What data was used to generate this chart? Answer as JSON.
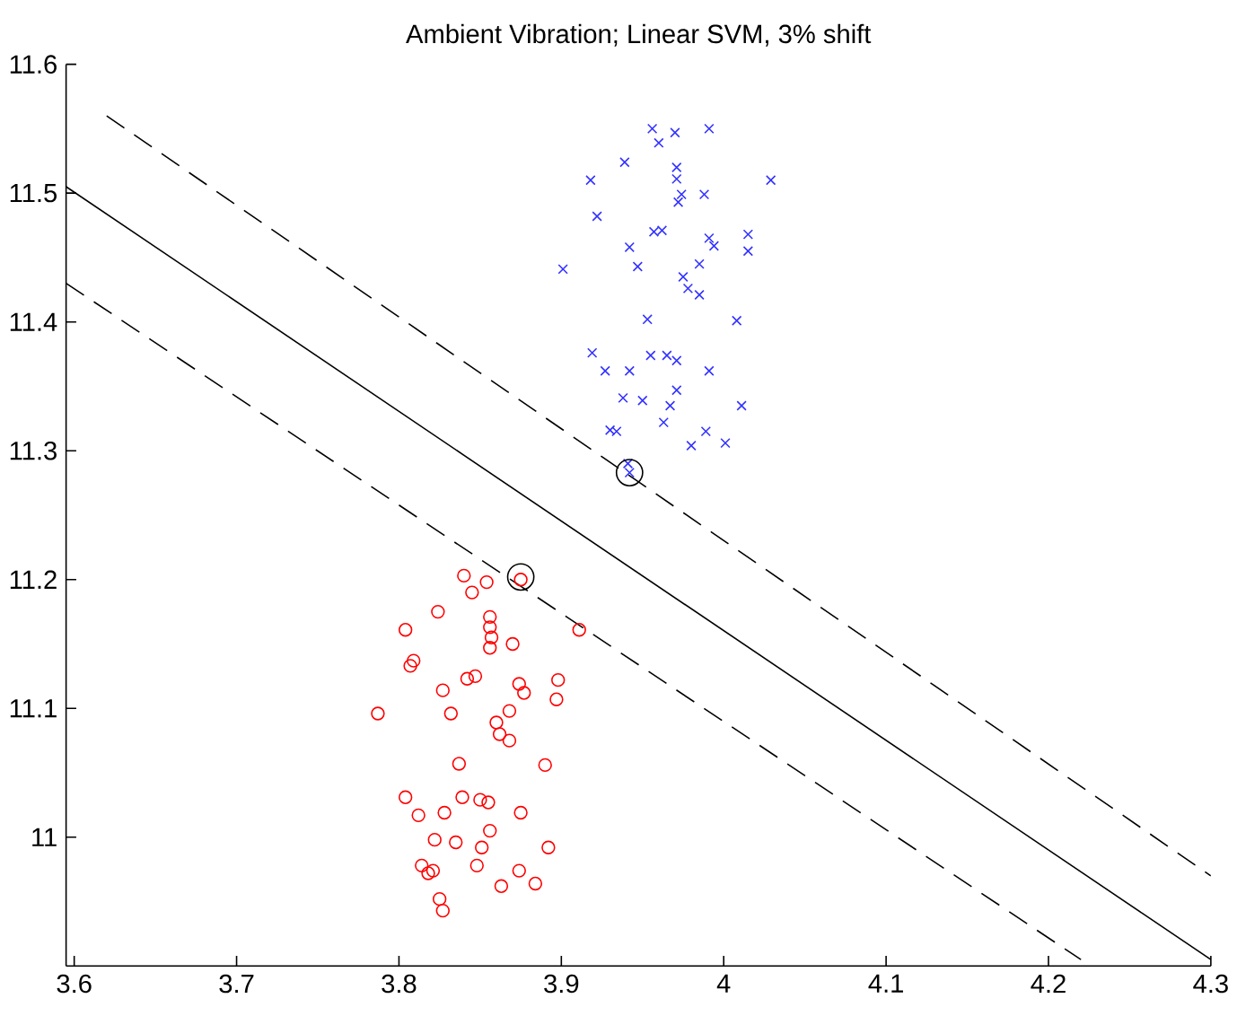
{
  "chart_data": {
    "type": "scatter",
    "title": "Ambient Vibration; Linear SVM, 3% shift",
    "xlim": [
      3.595,
      4.3
    ],
    "ylim": [
      10.9,
      11.6
    ],
    "xticks": [
      3.6,
      3.7,
      3.8,
      3.9,
      4,
      4.1,
      4.2,
      4.3
    ],
    "yticks": [
      11,
      11.1,
      11.2,
      11.3,
      11.4,
      11.5,
      11.6
    ],
    "grid": false,
    "series": [
      {
        "marker": "cross",
        "color": "#3333ff",
        "x": [
          3.956,
          3.97,
          3.96,
          3.991,
          3.939,
          3.918,
          3.971,
          3.971,
          3.974,
          3.972,
          3.988,
          4.029,
          3.922,
          3.957,
          3.962,
          3.942,
          3.947,
          3.901,
          3.991,
          3.994,
          4.015,
          4.015,
          3.985,
          3.975,
          3.978,
          3.985,
          3.953,
          4.008,
          3.919,
          3.927,
          3.942,
          3.955,
          3.965,
          3.971,
          3.991,
          3.938,
          3.95,
          3.971,
          3.967,
          4.011,
          3.963,
          3.93,
          3.934,
          3.989,
          3.98,
          4.001,
          3.941,
          3.942
        ],
        "values": [
          11.55,
          11.547,
          11.539,
          11.55,
          11.524,
          11.51,
          11.52,
          11.511,
          11.499,
          11.493,
          11.499,
          11.51,
          11.482,
          11.47,
          11.471,
          11.458,
          11.443,
          11.441,
          11.465,
          11.459,
          11.468,
          11.455,
          11.445,
          11.435,
          11.426,
          11.421,
          11.402,
          11.401,
          11.376,
          11.362,
          11.362,
          11.374,
          11.374,
          11.37,
          11.362,
          11.341,
          11.339,
          11.347,
          11.335,
          11.335,
          11.322,
          11.316,
          11.315,
          11.315,
          11.304,
          11.306,
          11.29,
          11.283
        ]
      },
      {
        "marker": "circle",
        "color": "#ff0000",
        "x": [
          3.84,
          3.854,
          3.845,
          3.875,
          3.824,
          3.804,
          3.856,
          3.856,
          3.857,
          3.856,
          3.87,
          3.911,
          3.809,
          3.807,
          3.842,
          3.847,
          3.827,
          3.874,
          3.877,
          3.898,
          3.897,
          3.787,
          3.832,
          3.868,
          3.86,
          3.862,
          3.868,
          3.837,
          3.89,
          3.804,
          3.812,
          3.828,
          3.839,
          3.85,
          3.855,
          3.875,
          3.822,
          3.835,
          3.856,
          3.851,
          3.892,
          3.848,
          3.814,
          3.818,
          3.821,
          3.874,
          3.863,
          3.884,
          3.825,
          3.827
        ],
        "values": [
          11.203,
          11.198,
          11.19,
          11.2,
          11.175,
          11.161,
          11.171,
          11.163,
          11.155,
          11.147,
          11.15,
          11.161,
          11.137,
          11.133,
          11.123,
          11.125,
          11.114,
          11.119,
          11.112,
          11.122,
          11.107,
          11.096,
          11.096,
          11.098,
          11.089,
          11.08,
          11.075,
          11.057,
          11.056,
          11.031,
          11.017,
          11.019,
          11.031,
          11.029,
          11.027,
          11.019,
          10.998,
          10.996,
          11.005,
          10.992,
          10.992,
          10.978,
          10.978,
          10.972,
          10.974,
          10.974,
          10.962,
          10.964,
          10.952,
          10.943
        ]
      },
      {
        "marker": "circle",
        "color": "#000000",
        "x": [
          3.942,
          3.875
        ],
        "values": [
          11.283,
          11.202
        ]
      },
      {
        "type": "line",
        "line_style": "solid",
        "color": "#000000",
        "x": [
          3.595,
          4.3
        ],
        "values": [
          11.505,
          10.905
        ]
      },
      {
        "type": "line",
        "line_style": "dashed",
        "color": "#000000",
        "x": [
          3.62,
          4.3
        ],
        "values": [
          11.56,
          10.97
        ]
      },
      {
        "type": "line",
        "line_style": "dashed",
        "color": "#000000",
        "x": [
          3.595,
          4.22
        ],
        "values": [
          11.43,
          10.905
        ]
      }
    ]
  }
}
